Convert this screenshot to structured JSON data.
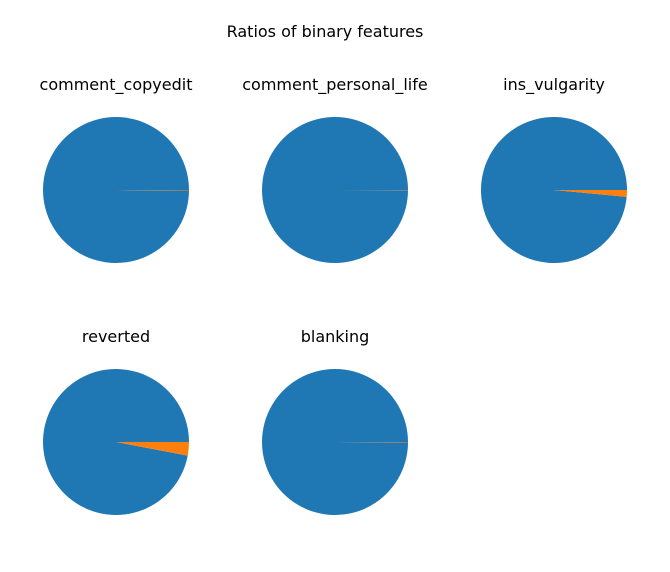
{
  "title": "Ratios of binary features",
  "colors": {
    "majority": "#1f77b4",
    "minority": "#ff7f0e"
  },
  "chart_data": [
    {
      "type": "pie",
      "title": "comment_copyedit",
      "values": [
        0.999,
        0.001
      ],
      "colors": [
        "#1f77b4",
        "#ff7f0e"
      ]
    },
    {
      "type": "pie",
      "title": "comment_personal_life",
      "values": [
        0.9995,
        0.0005
      ],
      "colors": [
        "#1f77b4",
        "#ff7f0e"
      ]
    },
    {
      "type": "pie",
      "title": "ins_vulgarity",
      "values": [
        0.985,
        0.015
      ],
      "colors": [
        "#1f77b4",
        "#ff7f0e"
      ]
    },
    {
      "type": "pie",
      "title": "reverted",
      "values": [
        0.97,
        0.03
      ],
      "colors": [
        "#1f77b4",
        "#ff7f0e"
      ]
    },
    {
      "type": "pie",
      "title": "blanking",
      "values": [
        0.999,
        0.001
      ],
      "colors": [
        "#1f77b4",
        "#ff7f0e"
      ]
    }
  ]
}
